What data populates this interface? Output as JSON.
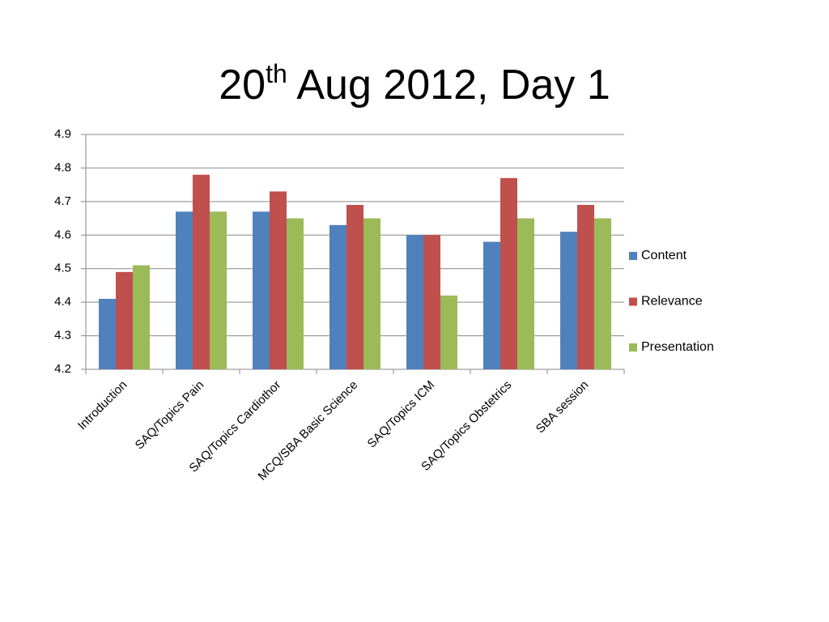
{
  "chart_data": {
    "type": "bar",
    "title": [
      "20",
      "th",
      " Aug 2012, Day 1"
    ],
    "categories": [
      "Introduction",
      "SAQ/Topics Pain",
      "SAQ/Topics Cardiothor",
      "MCQ/SBA Basic Science",
      "SAQ/Topics ICM",
      "SAQ/Topics Obstetrics",
      "SBA session"
    ],
    "series": [
      {
        "name": "Content",
        "color": "#4f81bd",
        "values": [
          4.41,
          4.67,
          4.67,
          4.63,
          4.6,
          4.58,
          4.61
        ]
      },
      {
        "name": "Relevance",
        "color": "#c0504d",
        "values": [
          4.49,
          4.78,
          4.73,
          4.69,
          4.6,
          4.77,
          4.69
        ]
      },
      {
        "name": "Presentation",
        "color": "#9bbb59",
        "values": [
          4.51,
          4.67,
          4.65,
          4.65,
          4.42,
          4.65,
          4.65
        ]
      }
    ],
    "ylim": [
      4.2,
      4.9
    ],
    "yticks": [
      4.2,
      4.3,
      4.4,
      4.5,
      4.6,
      4.7,
      4.8,
      4.9
    ],
    "grid": true,
    "legend": "right"
  }
}
